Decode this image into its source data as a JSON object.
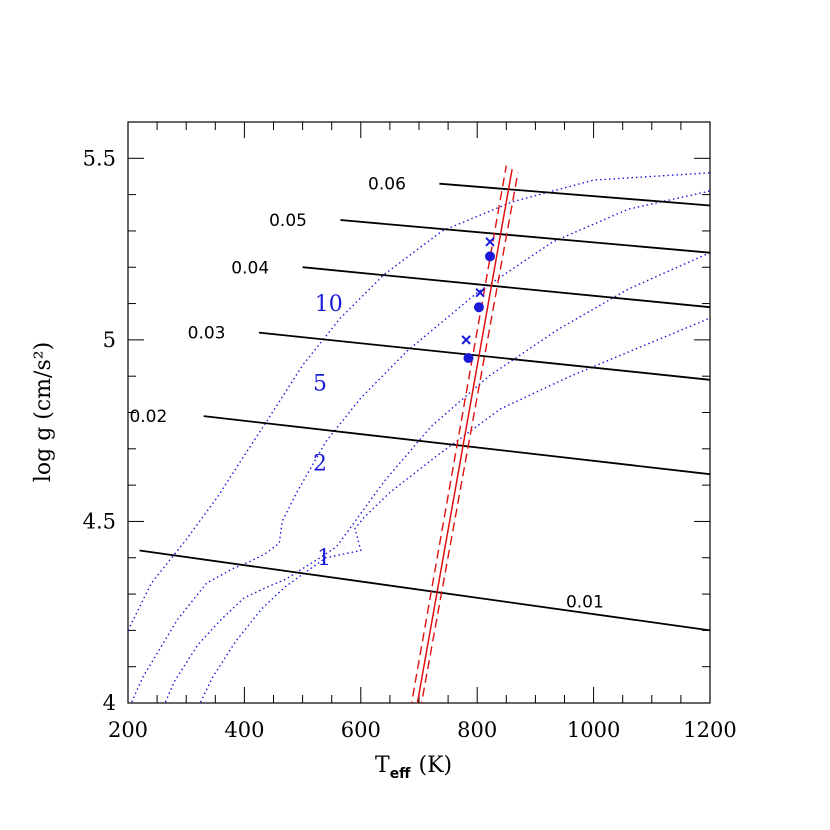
{
  "chart_data": {
    "type": "line",
    "xlabel": "T",
    "xlabel_sub": "eff",
    "xlabel_unit": "(K)",
    "ylabel": "log  g  (cm/s²)",
    "xlim": [
      200,
      1200
    ],
    "ylim": [
      4,
      5.6
    ],
    "x_major_ticks": [
      200,
      400,
      600,
      800,
      1000,
      1200
    ],
    "x_tick_labels": [
      "200",
      "400",
      "600",
      "800",
      "1000",
      "1200"
    ],
    "x_minor_step": 50,
    "y_major_ticks": [
      4,
      4.5,
      5,
      5.5
    ],
    "y_tick_labels": [
      "4",
      "4.5",
      "5",
      "5.5"
    ],
    "y_minor_step": 0.1,
    "grid": false,
    "colors": {
      "mass_tracks": "#000000",
      "isochrones": "#1a1ad8",
      "constraint": "#e01010",
      "points": "#1a1ad8"
    },
    "mass_tracks": [
      {
        "name": "0.01",
        "points": [
          [
            220,
            4.42
          ],
          [
            1200,
            4.2
          ]
        ],
        "label_at": [
          985,
          4.28
        ]
      },
      {
        "name": "0.02",
        "points": [
          [
            330,
            4.79
          ],
          [
            1200,
            4.63
          ]
        ],
        "label_at": [
          235,
          4.79
        ]
      },
      {
        "name": "0.03",
        "points": [
          [
            425,
            5.02
          ],
          [
            1200,
            4.89
          ]
        ],
        "label_at": [
          335,
          5.02
        ]
      },
      {
        "name": "0.04",
        "points": [
          [
            500,
            5.2
          ],
          [
            1200,
            5.09
          ]
        ],
        "label_at": [
          410,
          5.2
        ]
      },
      {
        "name": "0.05",
        "points": [
          [
            565,
            5.33
          ],
          [
            1200,
            5.24
          ]
        ],
        "label_at": [
          475,
          5.33
        ]
      },
      {
        "name": "0.06",
        "points": [
          [
            735,
            5.43
          ],
          [
            1200,
            5.37
          ]
        ],
        "label_at": [
          645,
          5.43
        ]
      }
    ],
    "isochrones": [
      {
        "name": "10",
        "label_at": [
          545,
          5.08
        ],
        "points": [
          [
            200,
            4.2
          ],
          [
            240,
            4.33
          ],
          [
            300,
            4.45
          ],
          [
            355,
            4.57
          ],
          [
            395,
            4.67
          ],
          [
            440,
            4.78
          ],
          [
            500,
            4.93
          ],
          [
            565,
            5.06
          ],
          [
            640,
            5.18
          ],
          [
            740,
            5.3
          ],
          [
            860,
            5.38
          ],
          [
            1000,
            5.44
          ],
          [
            1200,
            5.46
          ]
        ]
      },
      {
        "name": "5",
        "label_at": [
          530,
          4.86
        ],
        "points": [
          [
            200,
            3.98
          ],
          [
            225,
            4.07
          ],
          [
            285,
            4.23
          ],
          [
            335,
            4.33
          ],
          [
            380,
            4.37
          ],
          [
            410,
            4.39
          ],
          [
            435,
            4.41
          ],
          [
            460,
            4.44
          ],
          [
            465,
            4.5
          ],
          [
            490,
            4.58
          ],
          [
            540,
            4.72
          ],
          [
            600,
            4.84
          ],
          [
            680,
            4.97
          ],
          [
            800,
            5.13
          ],
          [
            930,
            5.27
          ],
          [
            1060,
            5.36
          ],
          [
            1200,
            5.41
          ]
        ]
      },
      {
        "name": "2",
        "label_at": [
          530,
          4.64
        ],
        "points": [
          [
            258,
            3.98
          ],
          [
            280,
            4.06
          ],
          [
            320,
            4.16
          ],
          [
            360,
            4.23
          ],
          [
            400,
            4.29
          ],
          [
            440,
            4.32
          ],
          [
            470,
            4.34
          ],
          [
            490,
            4.36
          ],
          [
            530,
            4.4
          ],
          [
            558,
            4.43
          ],
          [
            590,
            4.5
          ],
          [
            640,
            4.61
          ],
          [
            720,
            4.76
          ],
          [
            820,
            4.9
          ],
          [
            940,
            5.03
          ],
          [
            1060,
            5.14
          ],
          [
            1200,
            5.24
          ]
        ]
      },
      {
        "name": "1",
        "label_at": [
          537,
          4.38
        ],
        "points": [
          [
            318,
            3.98
          ],
          [
            345,
            4.07
          ],
          [
            385,
            4.17
          ],
          [
            430,
            4.26
          ],
          [
            470,
            4.32
          ],
          [
            505,
            4.36
          ],
          [
            540,
            4.4
          ],
          [
            570,
            4.41
          ],
          [
            600,
            4.42
          ],
          [
            590,
            4.48
          ],
          [
            605,
            4.51
          ],
          [
            650,
            4.58
          ],
          [
            730,
            4.68
          ],
          [
            840,
            4.81
          ],
          [
            960,
            4.9
          ],
          [
            1080,
            4.98
          ],
          [
            1200,
            5.06
          ]
        ]
      }
    ],
    "constraint": {
      "center": [
        [
          695,
          3.98
        ],
        [
          860,
          5.47
        ]
      ],
      "upper_dashed": [
        [
          685,
          3.98
        ],
        [
          850,
          5.48
        ]
      ],
      "lower_dashed": [
        [
          702,
          3.98
        ],
        [
          870,
          5.46
        ]
      ]
    },
    "points_circle": [
      [
        785,
        4.95
      ],
      [
        803,
        5.09
      ],
      [
        822,
        5.23
      ]
    ],
    "points_cross": [
      [
        781,
        5.0
      ],
      [
        805,
        5.13
      ],
      [
        822,
        5.27
      ]
    ]
  }
}
